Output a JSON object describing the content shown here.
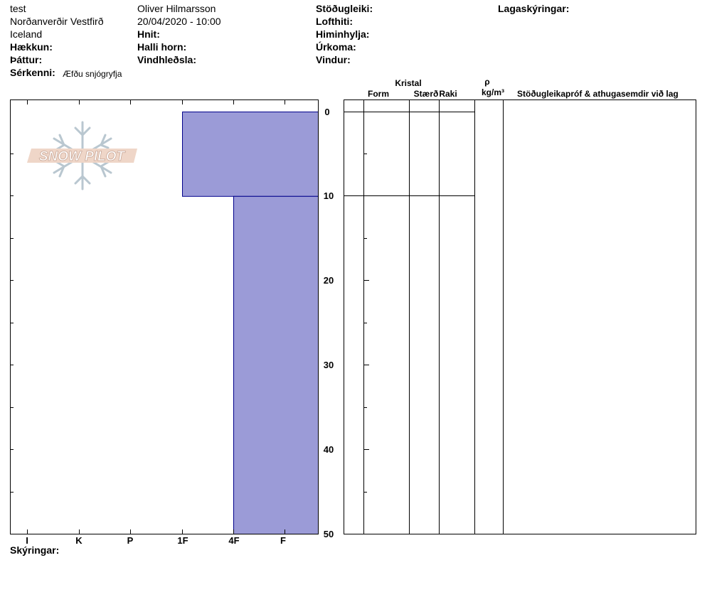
{
  "header": {
    "col1": {
      "line1": "test",
      "line2": "Norðanverðir Vestfirð",
      "line3": "Iceland",
      "elevation_label": "Hækkun:",
      "observer_label": "Þáttur:",
      "features_label": "Sérkenni:",
      "features_value": "Æfðu snjógryfja"
    },
    "col2": {
      "observer": "Oliver Hilmarsson",
      "datetime": "20/04/2020 - 10:00",
      "coords_label": "Hnit:",
      "slope_label": "Halli horn:",
      "windload_label": "Vindhleðsla:"
    },
    "col3": {
      "stability_label": "Stöðugleiki:",
      "airtemp_label": "Lofthiti:",
      "sky_label": "Himinhylja:",
      "precip_label": "Úrkoma:",
      "wind_label": "Vindur:"
    },
    "col4": {
      "legend_label": "Lagaskýringar:"
    }
  },
  "logo": {
    "text": "SNOW PILOT"
  },
  "table_headers": {
    "crystal": "Kristal",
    "form": "Form",
    "size": "Stærð",
    "moisture": "Raki",
    "rho": "ρ",
    "density_unit": "kg/m³",
    "comments": "Stöðugleikapróf & athugasemdir við lag"
  },
  "footer": {
    "notes_label": "Skýringar:"
  },
  "colors": {
    "hardness_fill": "#9b9bd7",
    "hardness_stroke": "#00008b"
  },
  "chart_data": {
    "type": "bar",
    "xlabel": "",
    "ylabel": "",
    "hardness_categories": [
      "I",
      "K",
      "P",
      "1F",
      "4F",
      "F"
    ],
    "depth_ticks": [
      0,
      10,
      20,
      30,
      40,
      50
    ],
    "ylim": [
      0,
      50
    ],
    "layers": [
      {
        "top": 0,
        "bottom": 10,
        "hardness": "1F"
      },
      {
        "top": 10,
        "bottom": 50,
        "hardness": "4F"
      }
    ]
  }
}
